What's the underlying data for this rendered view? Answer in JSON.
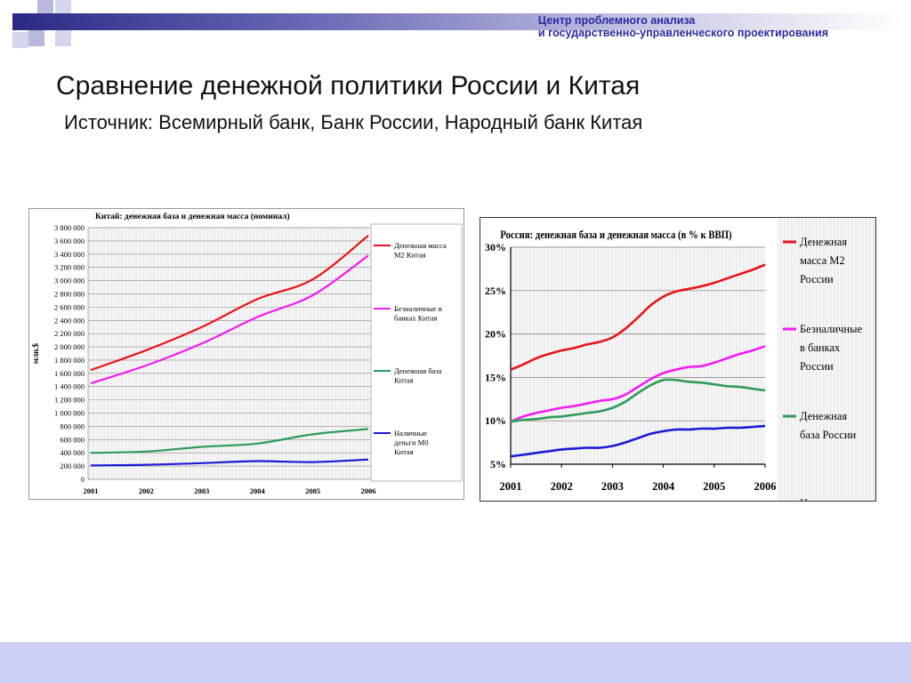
{
  "header": {
    "org_line1": "Центр проблемного анализа",
    "org_line2": "и государственно-управленческого проектирования"
  },
  "slide": {
    "title": "Сравнение денежной политики России и Китая",
    "subtitle": "Источник: Всемирный банк, Банк России, Народный банк Китая"
  },
  "colors": {
    "accent": "#2a2a86",
    "bottom_bar": "#cfd0f6"
  },
  "chart_data": [
    {
      "id": "china",
      "type": "line",
      "title": "Китай: денежная база и денежная масса (номинал)",
      "ylabel": "млн.$",
      "xlabel": "",
      "x": [
        2001,
        2002,
        2003,
        2004,
        2005,
        2006
      ],
      "x_ticks": [
        "2001",
        "2002",
        "2003",
        "2004",
        "2005",
        "2006"
      ],
      "ylim": [
        0,
        3800000
      ],
      "y_ticks": [
        "0",
        "200 000",
        "400 000",
        "600 000",
        "800 000",
        "1 000 000",
        "1 200 000",
        "1 400 000",
        "1 600 000",
        "1 800 000",
        "2 000 000",
        "2 200 000",
        "2 400 000",
        "2 600 000",
        "2 800 000",
        "3 000 000",
        "3 200 000",
        "3 400 000",
        "3 600 000",
        "3 800 000"
      ],
      "grid": true,
      "legend_position": "right",
      "series": [
        {
          "name": "Денежная масса М2 Китая",
          "color": "#e8141a",
          "values": [
            1650000,
            1950000,
            2300000,
            2720000,
            3020000,
            3680000
          ]
        },
        {
          "name": "Безналичные в банках Китая",
          "color": "#f21cf2",
          "values": [
            1450000,
            1720000,
            2050000,
            2450000,
            2780000,
            3380000
          ]
        },
        {
          "name": "Денежная база Китая",
          "color": "#2e9b5a",
          "values": [
            400000,
            420000,
            490000,
            540000,
            680000,
            760000
          ]
        },
        {
          "name": "Наличные деньги М0 Китая",
          "color": "#1a1ad6",
          "values": [
            210000,
            220000,
            245000,
            275000,
            260000,
            300000
          ]
        }
      ]
    },
    {
      "id": "russia",
      "type": "line",
      "title": "Россия: денежная база и денежная масса (в % к ВВП)",
      "ylabel": "",
      "xlabel": "",
      "x_ticks": [
        "2001",
        "2002",
        "2003",
        "2004",
        "2005",
        "2006"
      ],
      "ylim": [
        5,
        30
      ],
      "y_ticks": [
        "5%",
        "10%",
        "15%",
        "20%",
        "25%",
        "30%"
      ],
      "grid": true,
      "legend_position": "right",
      "series": [
        {
          "name": "Денежная масса М2 России",
          "color": "#e8141a",
          "x": [
            2001,
            2001.25,
            2001.5,
            2001.75,
            2002,
            2002.25,
            2002.5,
            2002.75,
            2003,
            2003.25,
            2003.5,
            2003.75,
            2004,
            2004.25,
            2004.5,
            2004.75,
            2005,
            2005.25,
            2005.5,
            2005.75,
            2006
          ],
          "values": [
            15.9,
            16.5,
            17.2,
            17.7,
            18.1,
            18.4,
            18.8,
            19.1,
            19.6,
            20.6,
            21.9,
            23.3,
            24.3,
            24.9,
            25.2,
            25.5,
            25.9,
            26.4,
            26.9,
            27.4,
            28.0
          ]
        },
        {
          "name": "Безналичные в банках России",
          "color": "#f21cf2",
          "x": [
            2001,
            2001.25,
            2001.5,
            2001.75,
            2002,
            2002.25,
            2002.5,
            2002.75,
            2003,
            2003.25,
            2003.5,
            2003.75,
            2004,
            2004.25,
            2004.5,
            2004.75,
            2005,
            2005.25,
            2005.5,
            2005.75,
            2006
          ],
          "values": [
            9.9,
            10.5,
            10.9,
            11.2,
            11.5,
            11.7,
            12.0,
            12.3,
            12.5,
            13.0,
            13.9,
            14.8,
            15.5,
            15.9,
            16.2,
            16.3,
            16.7,
            17.2,
            17.7,
            18.1,
            18.6
          ]
        },
        {
          "name": "Денежная база России",
          "color": "#2e9b5a",
          "x": [
            2001,
            2001.25,
            2001.5,
            2001.75,
            2002,
            2002.25,
            2002.5,
            2002.75,
            2003,
            2003.25,
            2003.5,
            2003.75,
            2004,
            2004.25,
            2004.5,
            2004.75,
            2005,
            2005.25,
            2005.5,
            2005.75,
            2006
          ],
          "values": [
            9.9,
            10.1,
            10.2,
            10.4,
            10.5,
            10.7,
            10.9,
            11.1,
            11.5,
            12.2,
            13.2,
            14.1,
            14.7,
            14.7,
            14.5,
            14.4,
            14.2,
            14.0,
            13.9,
            13.7,
            13.5
          ]
        },
        {
          "name": "Наличные",
          "color": "#1a1ad6",
          "x": [
            2001,
            2001.25,
            2001.5,
            2001.75,
            2002,
            2002.25,
            2002.5,
            2002.75,
            2003,
            2003.25,
            2003.5,
            2003.75,
            2004,
            2004.25,
            2004.5,
            2004.75,
            2005,
            2005.25,
            2005.5,
            2005.75,
            2006
          ],
          "values": [
            5.9,
            6.1,
            6.3,
            6.5,
            6.7,
            6.8,
            6.9,
            6.9,
            7.1,
            7.5,
            8.0,
            8.5,
            8.8,
            9.0,
            9.0,
            9.1,
            9.1,
            9.2,
            9.2,
            9.3,
            9.4
          ]
        }
      ]
    }
  ]
}
